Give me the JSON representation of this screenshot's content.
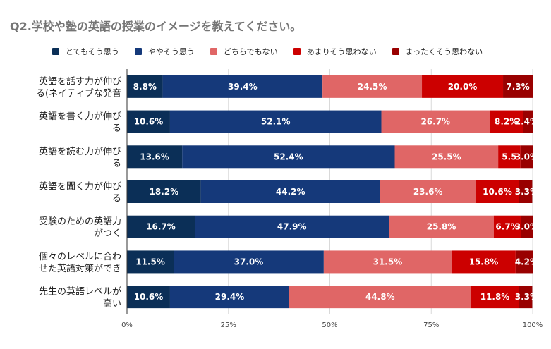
{
  "chart_data": {
    "type": "bar",
    "orientation": "horizontal",
    "stacked": true,
    "title": "Q2.学校や塾の英語の授業のイメージを教えてください。",
    "xlim": [
      0,
      100
    ],
    "x_ticks": [
      "0%",
      "25%",
      "50%",
      "75%",
      "100%"
    ],
    "grid": true,
    "legend_position": "top",
    "categories": [
      [
        "英語を話す力が伸び",
        "る(ネイティブな発音"
      ],
      [
        "英語を書く力が伸び",
        "る"
      ],
      [
        "英語を読む力が伸び",
        "る"
      ],
      [
        "英語を聞く力が伸び",
        "る"
      ],
      [
        "受験のための英語力",
        "がつく"
      ],
      [
        "個々のレベルに合わ",
        "せた英語対策ができ"
      ],
      [
        "先生の英語レベルが",
        "高い"
      ]
    ],
    "series": [
      {
        "name": "とてもそう思う",
        "color": "#0b2f57",
        "values": [
          8.8,
          10.6,
          13.6,
          18.2,
          16.7,
          11.5,
          10.6
        ],
        "labels": [
          "8.8%",
          "10.6%",
          "13.6%",
          "18.2%",
          "16.7%",
          "11.5%",
          "10.6%"
        ]
      },
      {
        "name": "ややそう思う",
        "color": "#15397a",
        "values": [
          39.4,
          52.1,
          52.4,
          44.2,
          47.9,
          37.0,
          29.4
        ],
        "labels": [
          "39.4%",
          "52.1%",
          "52.4%",
          "44.2%",
          "47.9%",
          "37.0%",
          "29.4%"
        ]
      },
      {
        "name": "どちらでもない",
        "color": "#e06666",
        "values": [
          24.5,
          26.7,
          25.5,
          23.6,
          25.8,
          31.5,
          44.8
        ],
        "labels": [
          "24.5%",
          "26.7%",
          "25.5%",
          "23.6%",
          "25.8%",
          "31.5%",
          "44.8%"
        ]
      },
      {
        "name": "あまりそう思わない",
        "color": "#cc0000",
        "values": [
          20.0,
          8.2,
          5.5,
          10.6,
          6.7,
          15.8,
          11.8
        ],
        "labels": [
          "20.0%",
          "8.2%",
          "5.5",
          "10.6%",
          "6.7%",
          "15.8%",
          "11.8%"
        ]
      },
      {
        "name": "まったくそう思わない",
        "color": "#990000",
        "values": [
          7.3,
          2.4,
          3.0,
          3.3,
          3.0,
          4.2,
          3.3
        ],
        "labels": [
          "7.3%",
          "2.4%",
          "3.0%",
          "3.3%",
          "3.0%",
          "4.2%",
          "3.3%"
        ]
      }
    ]
  }
}
